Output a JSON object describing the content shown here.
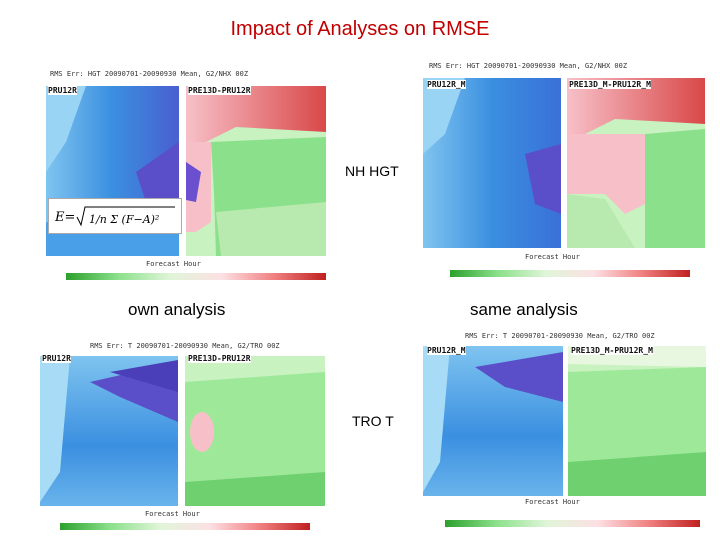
{
  "title": "Impact of Analyses on RMSE",
  "labels": {
    "nh_hgt": "NH HGT",
    "tro_t": "TRO T",
    "own_analysis": "own analysis",
    "same_analysis": "same analysis"
  },
  "panels": {
    "top_left": {
      "header": "RMS Err: HGT 20090701-20090930 Mean, G2/NHX 00Z",
      "left_sub": "PRU12R",
      "right_sub": "PRE13D-PRU12R",
      "xlabel": "Forecast Hour"
    },
    "top_right": {
      "header": "RMS Err: HGT 20090701-20090930 Mean, G2/NHX 00Z",
      "left_sub": "PRU12R_M",
      "right_sub": "PRE13D_M-PRU12R_M",
      "xlabel": "Forecast Hour"
    },
    "bottom_left": {
      "header": "RMS Err: T 20090701-20090930 Mean, G2/TRO 00Z",
      "left_sub": "PRU12R",
      "right_sub": "PRE13D-PRU12R",
      "xlabel": "Forecast Hour"
    },
    "bottom_right": {
      "header": "RMS Err: T 20090701-20090930 Mean, G2/TRO 00Z",
      "left_sub": "PRU12R_M",
      "right_sub": "PRE13D_M-PRU12R_M",
      "xlabel": "Forecast Hour"
    }
  },
  "colors": {
    "title": "#c00000",
    "blue_dark": "#4a3fb8",
    "blue_mid": "#3a7fdc",
    "blue_light": "#7fc4f0",
    "green": "#8be08b",
    "green_light": "#c8f2c0",
    "red": "#d94848",
    "pink": "#f7c0c8"
  }
}
